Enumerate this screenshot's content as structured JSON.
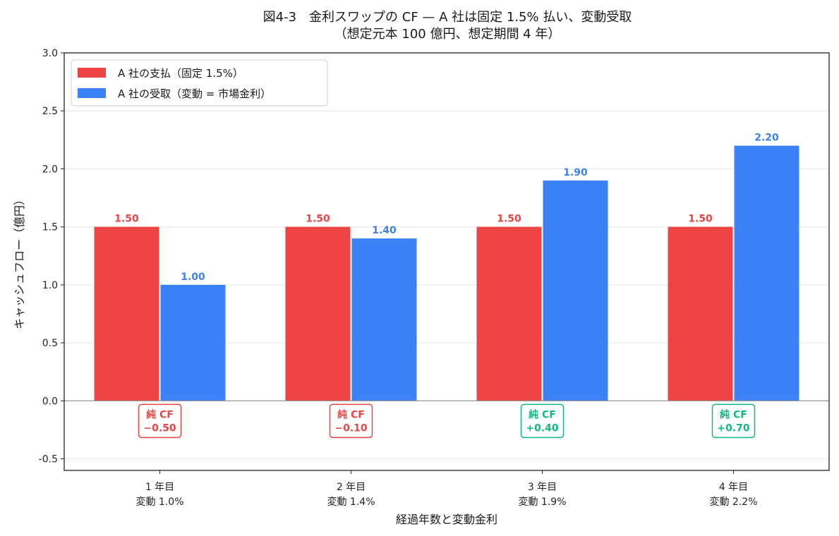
{
  "chart_data": {
    "type": "bar",
    "title": "図4-3　金利スワップの CF — A 社は固定 1.5% 払い、変動受取",
    "subtitle": "（想定元本 100 億円、想定期間 4 年）",
    "xlabel": "経過年数と変動金利",
    "ylabel": "キャッシュフロー（億円）",
    "ylim": [
      -0.6,
      3.0
    ],
    "yticks": [
      -0.5,
      0.0,
      0.5,
      1.0,
      1.5,
      2.0,
      2.5,
      3.0
    ],
    "ytick_labels": [
      "-0.5",
      "0.0",
      "0.5",
      "1.0",
      "1.5",
      "2.0",
      "2.5",
      "3.0"
    ],
    "grid": "horizontal",
    "legend_position": "top-left",
    "categories": [
      {
        "line1": "1 年目",
        "line2": "変動 1.0%"
      },
      {
        "line1": "2 年目",
        "line2": "変動 1.4%"
      },
      {
        "line1": "3 年目",
        "line2": "変動 1.9%"
      },
      {
        "line1": "4 年目",
        "line2": "変動 2.2%"
      }
    ],
    "series": [
      {
        "name": "A 社の支払（固定 1.5%）",
        "color": "#ef4444",
        "values": [
          1.5,
          1.5,
          1.5,
          1.5
        ],
        "labels": [
          "1.50",
          "1.50",
          "1.50",
          "1.50"
        ]
      },
      {
        "name": "A 社の受取（変動 = 市場金利）",
        "color": "#3b82f6",
        "values": [
          1.0,
          1.4,
          1.9,
          2.2
        ],
        "labels": [
          "1.00",
          "1.40",
          "1.90",
          "2.20"
        ]
      }
    ],
    "net_label": "純 CF",
    "net_values": [
      -0.5,
      -0.1,
      0.4,
      0.7
    ],
    "net_labels": [
      "−0.50",
      "−0.10",
      "+0.40",
      "+0.70"
    ],
    "net_colors": {
      "negative": "#ef4444",
      "positive": "#10b981"
    }
  }
}
